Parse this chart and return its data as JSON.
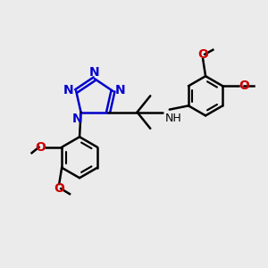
{
  "bg_color": "#ebebeb",
  "bond_color": "#000000",
  "N_color": "#0000cc",
  "O_color": "#cc0000",
  "NH_color": "#000000",
  "line_width": 1.8,
  "font_size": 10,
  "fig_size": [
    3.0,
    3.0
  ],
  "dpi": 100,
  "xlim": [
    0,
    10
  ],
  "ylim": [
    0,
    10
  ]
}
